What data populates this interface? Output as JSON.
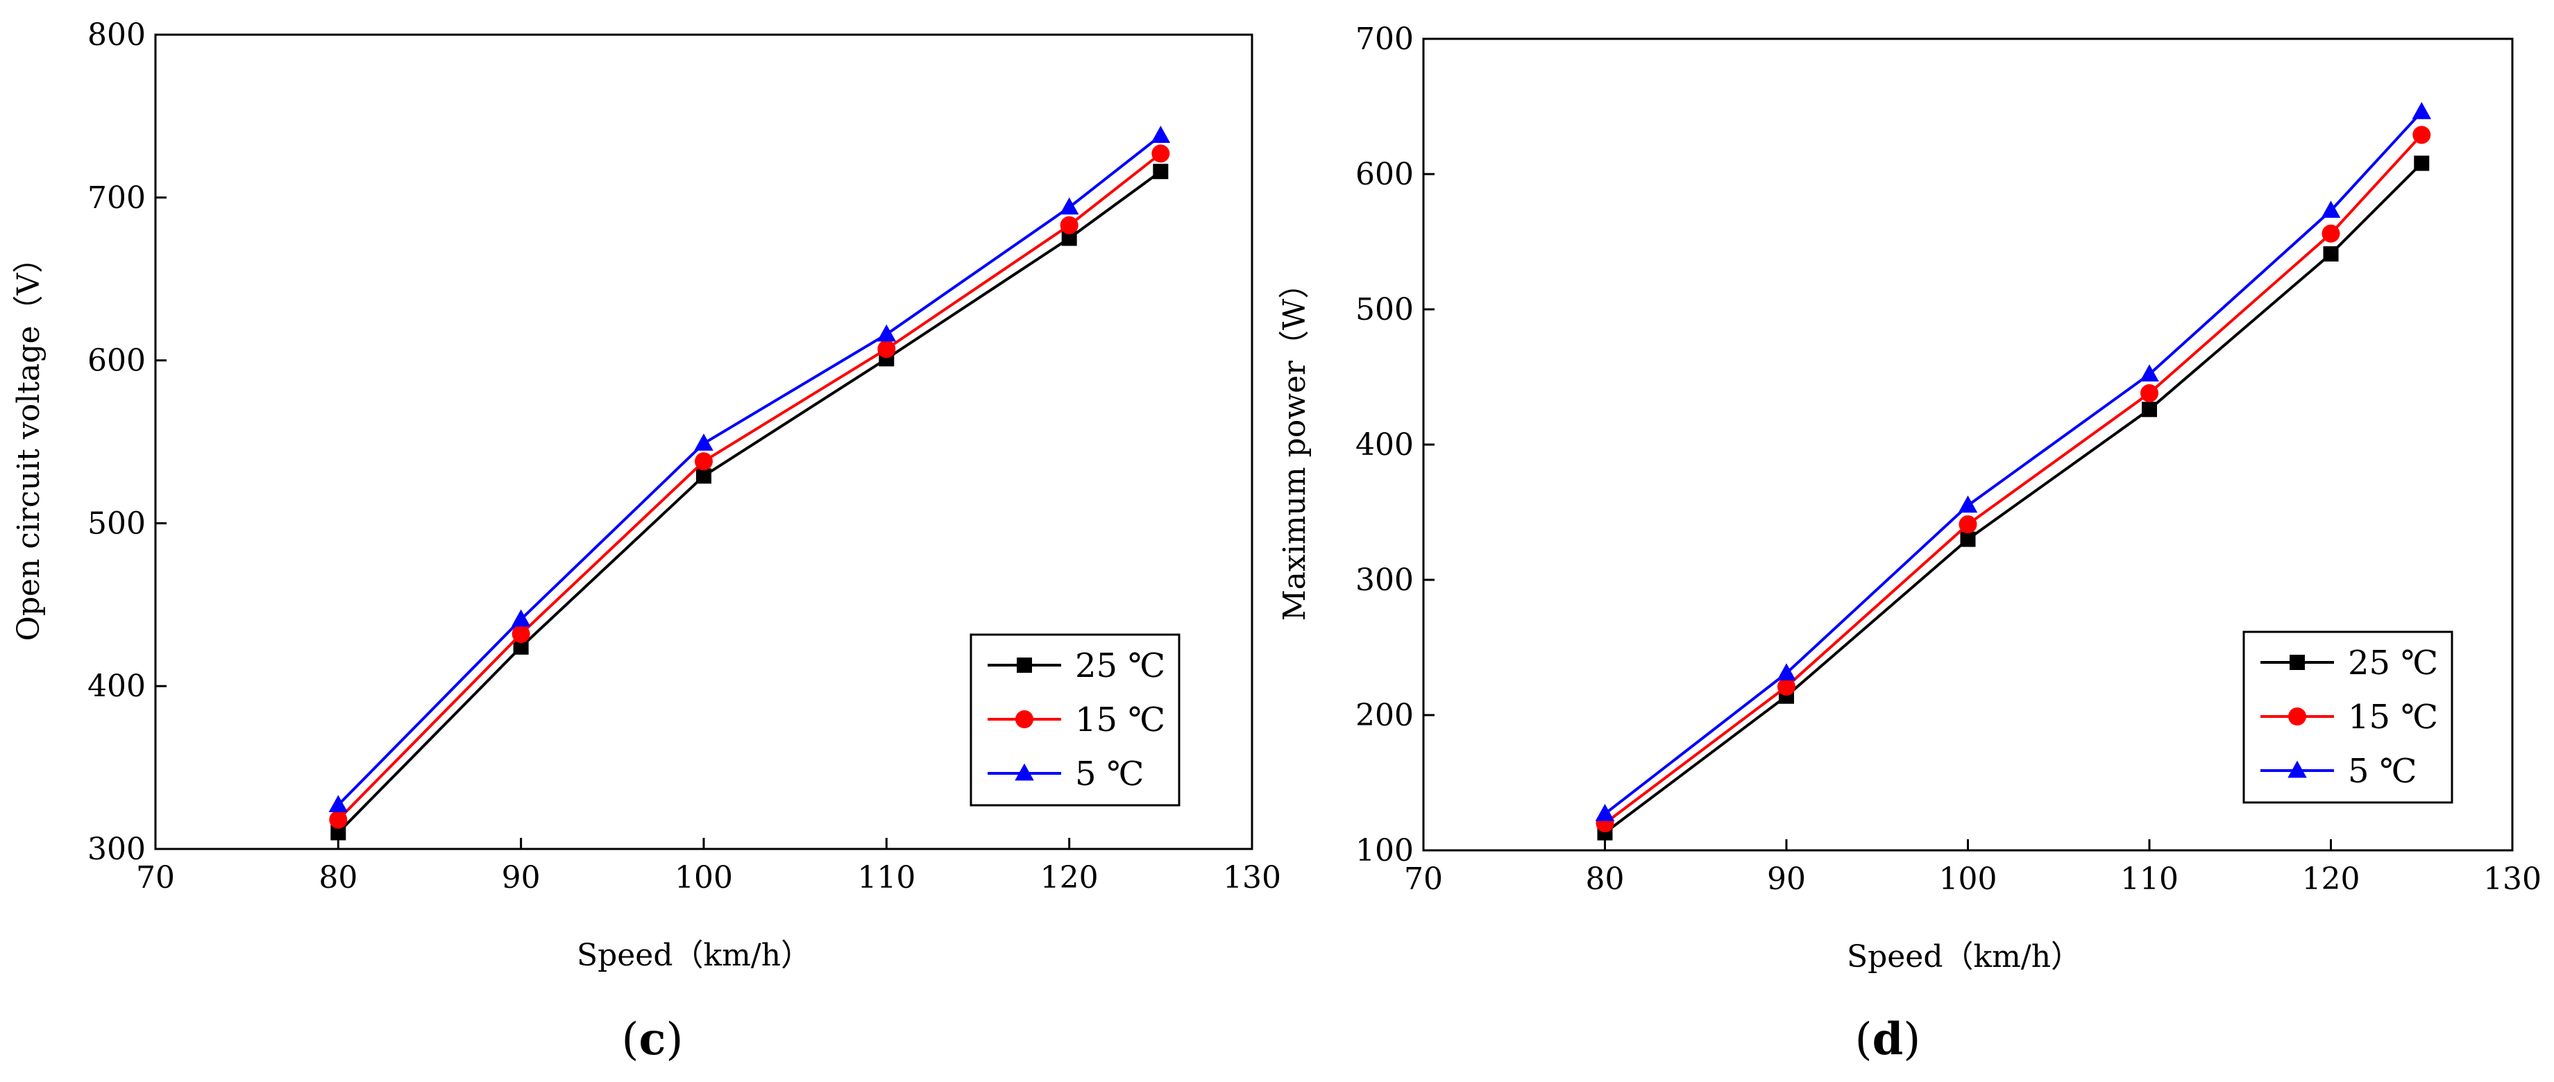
{
  "chart_data": [
    {
      "type": "line",
      "panel": "(c)",
      "panel_letter": "c",
      "xlabel": "Speed（km/h）",
      "ylabel": "Open circuit voltage（V）",
      "xlim": [
        70,
        130
      ],
      "ylim": [
        300,
        800
      ],
      "xticks": [
        70,
        80,
        90,
        100,
        110,
        120,
        130
      ],
      "yticks": [
        300,
        400,
        500,
        600,
        700,
        800
      ],
      "x": [
        80,
        90,
        100,
        110,
        120,
        125
      ],
      "legend_position": "bottom-right",
      "series": [
        {
          "name": "25 ℃",
          "color": "#000000",
          "marker": "square",
          "values": [
            310,
            424,
            529,
            601,
            675,
            716
          ]
        },
        {
          "name": "15 ℃",
          "color": "#ff0000",
          "marker": "circle",
          "values": [
            318,
            432,
            538,
            607,
            683,
            727
          ]
        },
        {
          "name": "5 ℃",
          "color": "#0000ff",
          "marker": "triangle",
          "values": [
            327,
            441,
            549,
            616,
            694,
            738
          ]
        }
      ]
    },
    {
      "type": "line",
      "panel": "(d)",
      "panel_letter": "d",
      "xlabel": "Speed（km/h）",
      "ylabel": "Maximum power（W）",
      "xlim": [
        70,
        130
      ],
      "ylim": [
        100,
        700
      ],
      "xticks": [
        70,
        80,
        90,
        100,
        110,
        120,
        130
      ],
      "yticks": [
        100,
        200,
        300,
        400,
        500,
        600,
        700
      ],
      "x": [
        80,
        90,
        100,
        110,
        120,
        125
      ],
      "legend_position": "bottom-right",
      "series": [
        {
          "name": "25 ℃",
          "color": "#000000",
          "marker": "square",
          "values": [
            113,
            214,
            330,
            426,
            541,
            608
          ]
        },
        {
          "name": "15 ℃",
          "color": "#ff0000",
          "marker": "circle",
          "values": [
            120,
            221,
            341,
            438,
            556,
            629
          ]
        },
        {
          "name": "5 ℃",
          "color": "#0000ff",
          "marker": "triangle",
          "values": [
            127,
            231,
            355,
            452,
            573,
            646
          ]
        }
      ]
    }
  ]
}
